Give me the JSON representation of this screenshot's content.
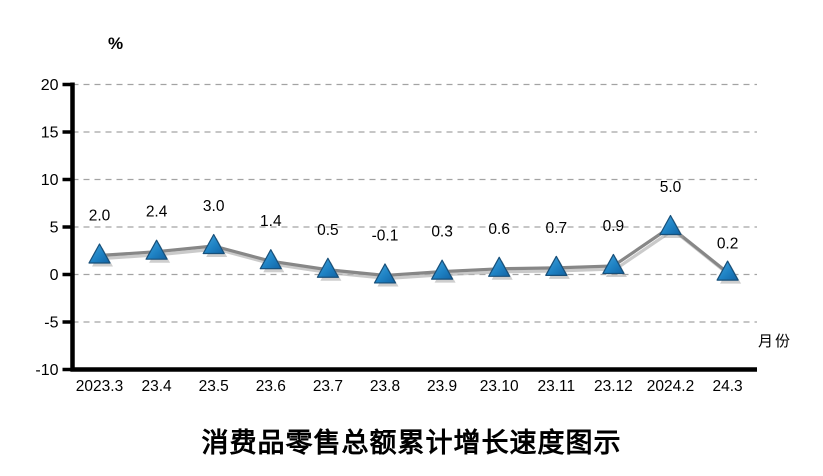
{
  "chart_data": {
    "type": "line",
    "title": "消费品零售总额累计增长速度图示",
    "ylabel": "%",
    "xlabel": "月份",
    "categories": [
      "2023.3",
      "23.4",
      "23.5",
      "23.6",
      "23.7",
      "23.8",
      "23.9",
      "23.10",
      "23.11",
      "23.12",
      "2024.2",
      "24.3"
    ],
    "values": [
      2.0,
      2.4,
      3.0,
      1.4,
      0.5,
      -0.1,
      0.3,
      0.6,
      0.7,
      0.9,
      5.0,
      0.2
    ],
    "data_labels": [
      "2.0",
      "2.4",
      "3.0",
      "1.4",
      "0.5",
      "-0.1",
      "0.3",
      "0.6",
      "0.7",
      "0.9",
      "5.0",
      "0.2"
    ],
    "ylim": [
      -10,
      20
    ],
    "yticks": [
      -10,
      -5,
      0,
      5,
      10,
      15,
      20
    ],
    "grid": "horizontal-dashed",
    "legend": "none",
    "marker": "triangle-up",
    "colors": {
      "marker_fill_light": "#45A3DA",
      "marker_fill_dark": "#1363A3",
      "marker_stroke": "#174F79",
      "line": "#878787",
      "shadow": "#b4b4b4",
      "gridline": "#A3A3A3",
      "axis": "#000000",
      "text": "#000000",
      "background": "#FFFFFF"
    }
  }
}
